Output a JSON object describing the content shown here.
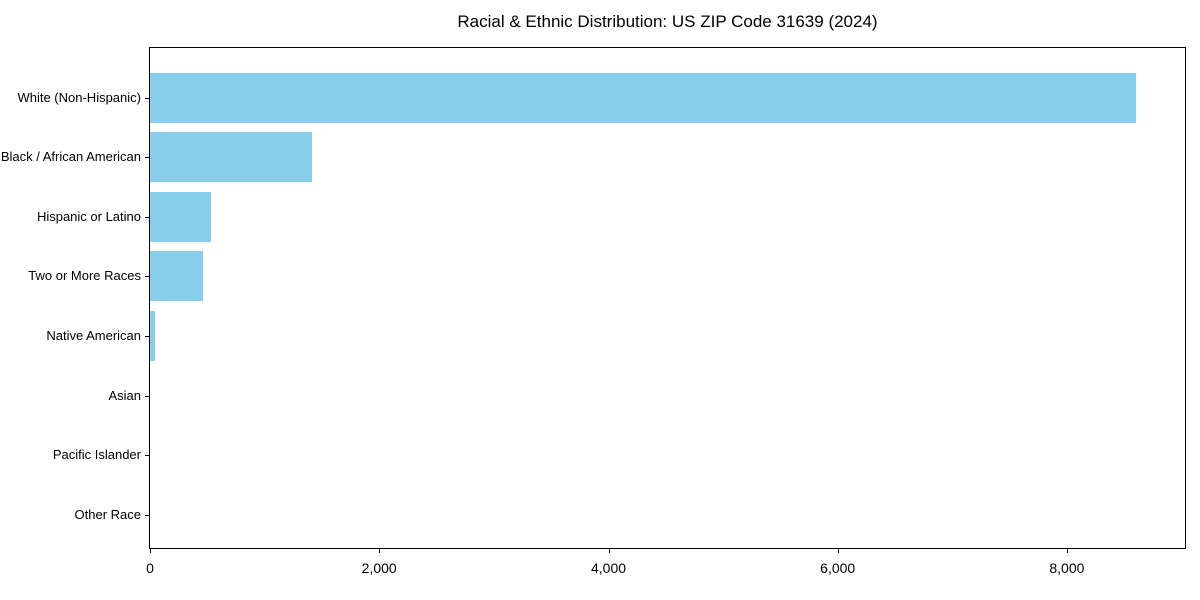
{
  "chart_data": {
    "type": "bar",
    "orientation": "horizontal",
    "title": "Racial & Ethnic Distribution: US ZIP Code 31639 (2024)",
    "categories": [
      "White (Non-Hispanic)",
      "Black / African American",
      "Hispanic or Latino",
      "Two or More Races",
      "Native American",
      "Asian",
      "Pacific Islander",
      "Other Race"
    ],
    "values": [
      8600,
      1415,
      530,
      465,
      40,
      0,
      0,
      0
    ],
    "xlabel": "",
    "ylabel": "",
    "xlim": [
      0,
      9030
    ],
    "x_ticks": [
      0,
      2000,
      4000,
      6000,
      8000
    ],
    "x_tick_labels": [
      "0",
      "2,000",
      "4,000",
      "6,000",
      "8,000"
    ],
    "bar_color": "#87CEEB",
    "grid": false,
    "legend_position": "none",
    "plot_border": true
  }
}
